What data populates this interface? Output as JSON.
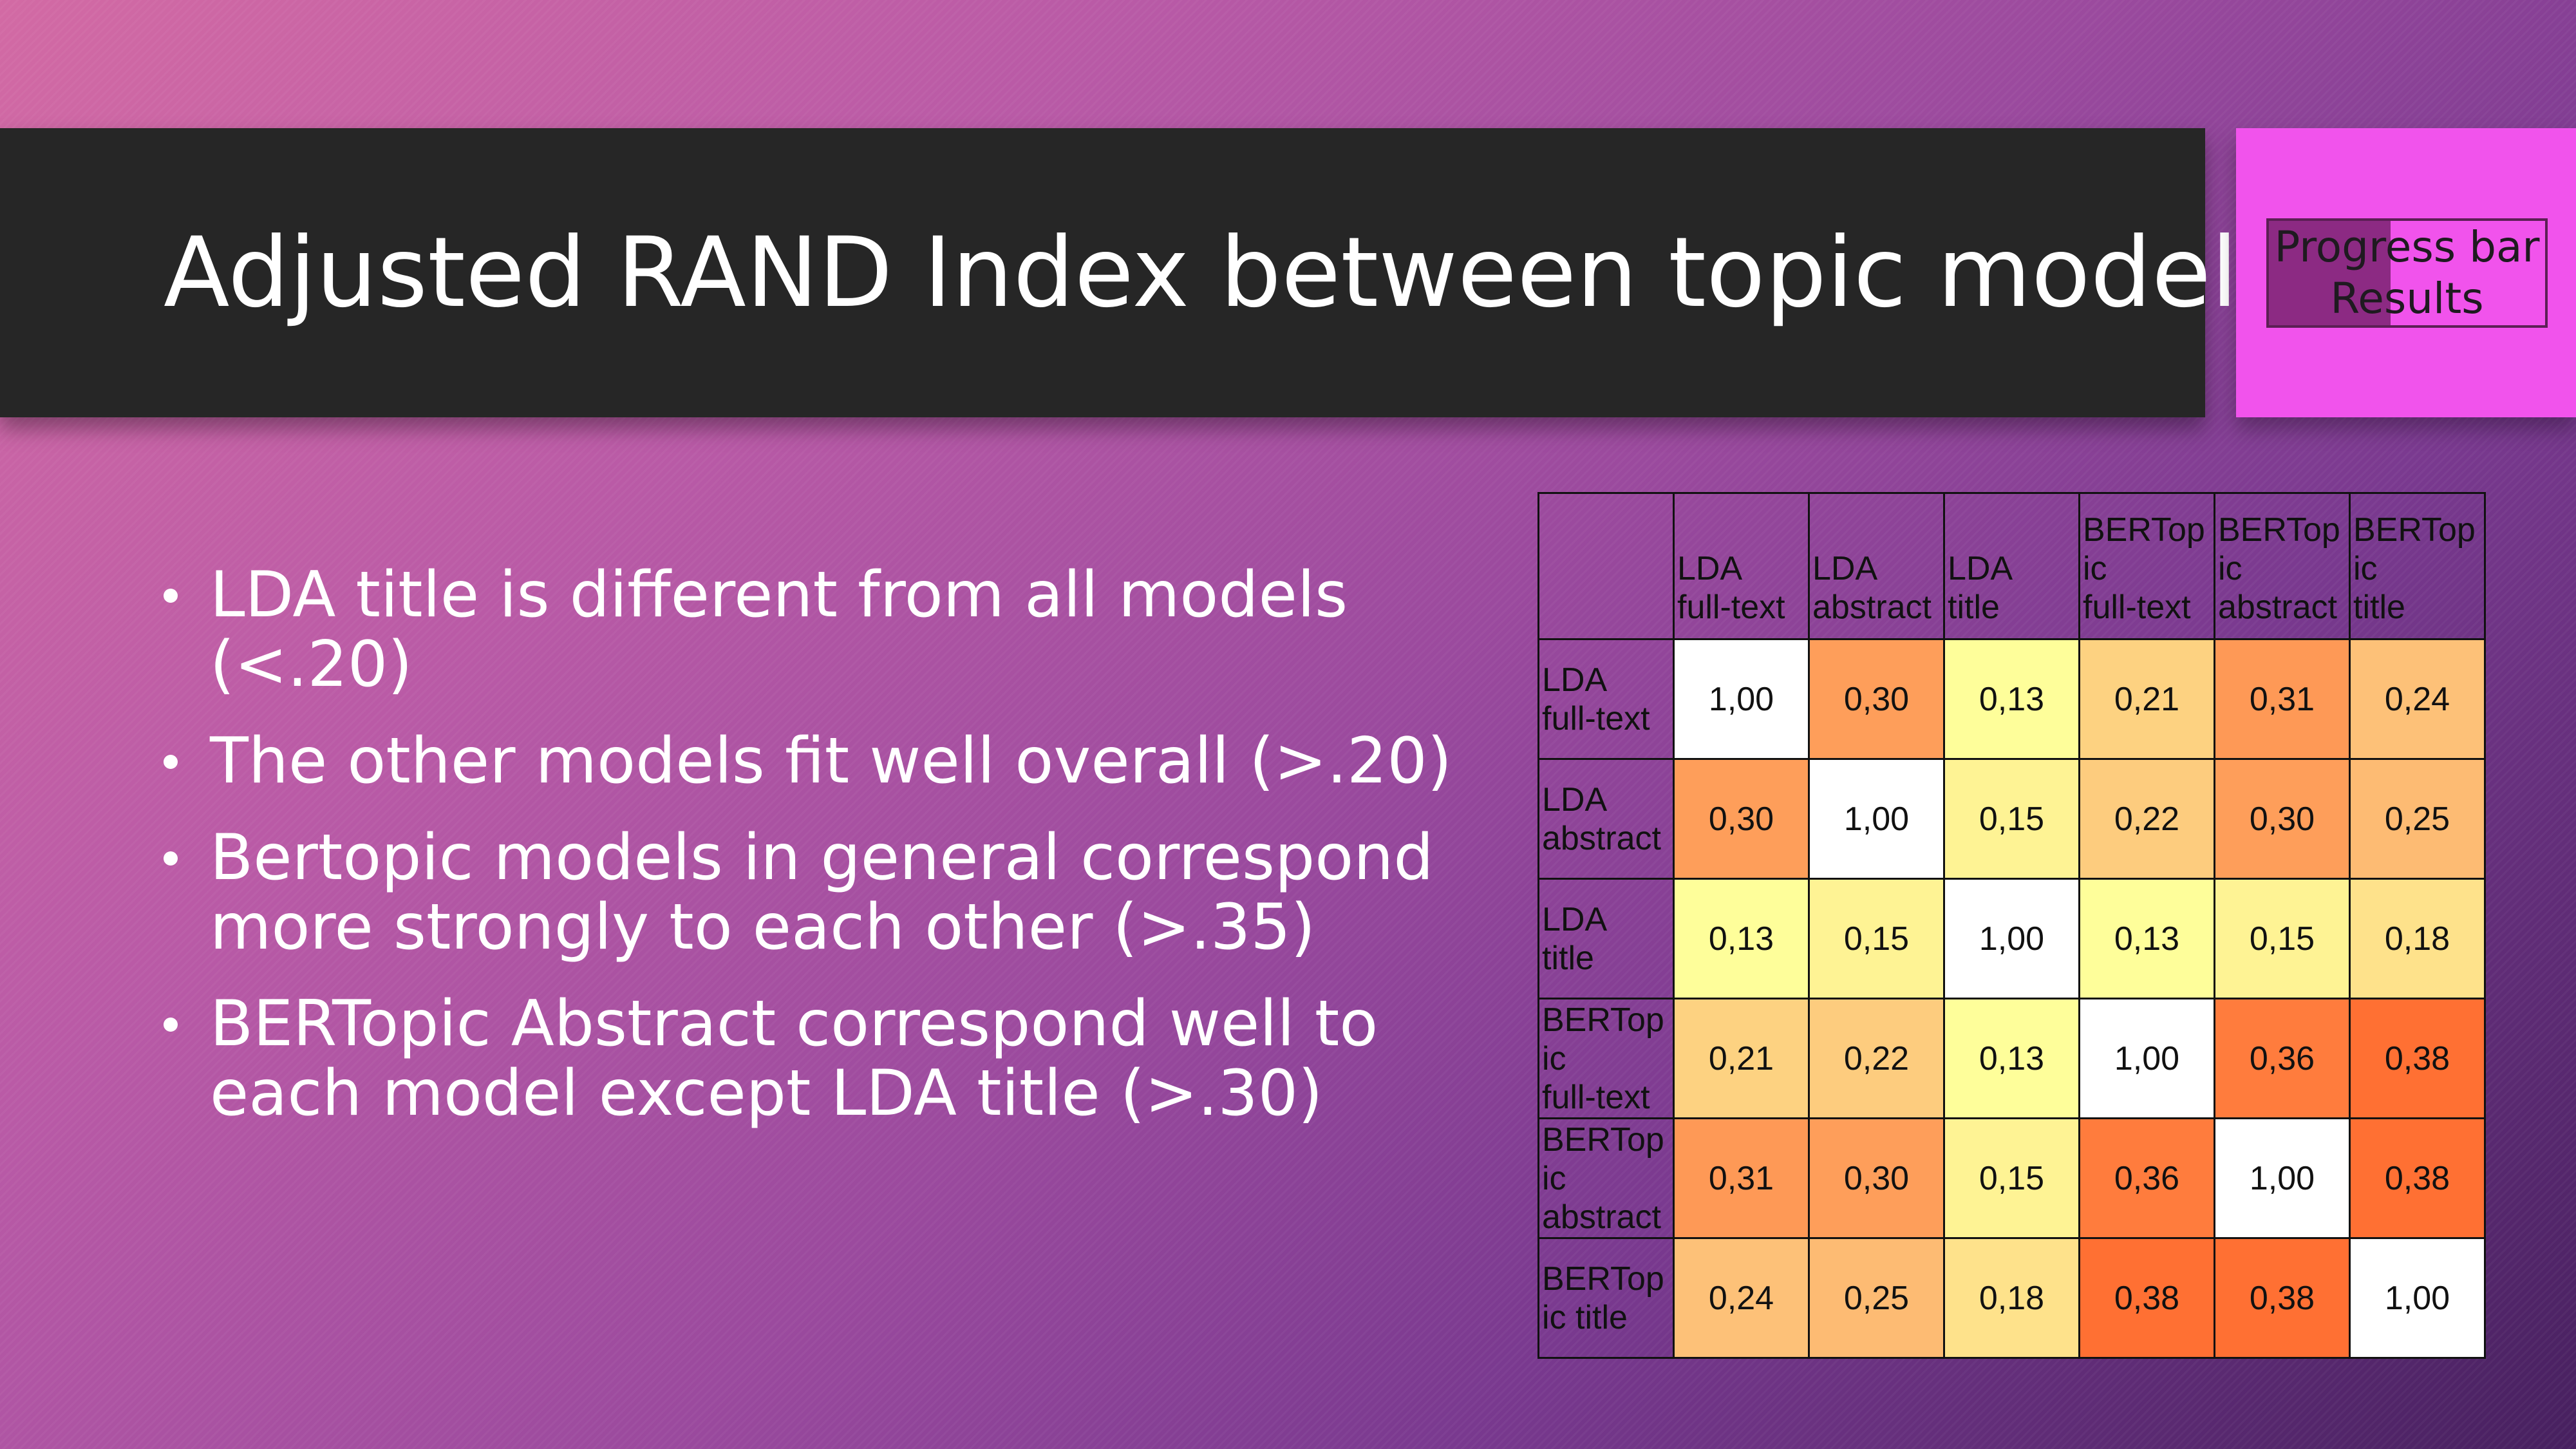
{
  "slide": {
    "title": "Adjusted RAND Index between topic models",
    "progress": {
      "line1": "Progress bar",
      "line2": "Results",
      "fill_fraction": 0.44,
      "fill_color": "#8c2a83",
      "box_color": "#f153ec"
    },
    "bullets": [
      "LDA title is different from all models (<.20)",
      "The other models fit well overall (>.20)",
      "Bertopic models in general correspond more strongly to each other (>.35)",
      "BERTopic Abstract correspond well to each model except LDA title (>.30)"
    ]
  },
  "chart_data": {
    "type": "heatmap",
    "column_labels": [
      [
        "LDA",
        "full-text"
      ],
      [
        "LDA",
        "abstract"
      ],
      [
        "LDA",
        "title"
      ],
      [
        "BERTop",
        "ic",
        "full-text"
      ],
      [
        "BERTop",
        "ic",
        "abstract"
      ],
      [
        "BERTop",
        "ic",
        "title"
      ]
    ],
    "row_labels": [
      [
        "LDA",
        "full-text"
      ],
      [
        "LDA",
        "abstract"
      ],
      [
        "LDA",
        "title"
      ],
      [
        "BERTop",
        "ic",
        "full-text"
      ],
      [
        "BERTop",
        "ic",
        "abstract"
      ],
      [
        "BERTop",
        "ic title"
      ]
    ],
    "cells": [
      [
        "1,00",
        "0,30",
        "0,13",
        "0,21",
        "0,31",
        "0,24"
      ],
      [
        "0,30",
        "1,00",
        "0,15",
        "0,22",
        "0,30",
        "0,25"
      ],
      [
        "0,13",
        "0,15",
        "1,00",
        "0,13",
        "0,15",
        "0,18"
      ],
      [
        "0,21",
        "0,22",
        "0,13",
        "1,00",
        "0,36",
        "0,38"
      ],
      [
        "0,31",
        "0,30",
        "0,15",
        "0,36",
        "1,00",
        "0,38"
      ],
      [
        "0,24",
        "0,25",
        "0,18",
        "0,38",
        "0,38",
        "1,00"
      ]
    ],
    "values": [
      [
        1.0,
        0.3,
        0.13,
        0.21,
        0.31,
        0.24
      ],
      [
        0.3,
        1.0,
        0.15,
        0.22,
        0.3,
        0.25
      ],
      [
        0.13,
        0.15,
        1.0,
        0.13,
        0.15,
        0.18
      ],
      [
        0.21,
        0.22,
        0.13,
        1.0,
        0.36,
        0.38
      ],
      [
        0.31,
        0.3,
        0.15,
        0.36,
        1.0,
        0.38
      ],
      [
        0.24,
        0.25,
        0.18,
        0.38,
        0.38,
        1.0
      ]
    ],
    "colors": {
      "diagonal": "#ffffff",
      "low": "#fefe9a",
      "mid": "#fdc178",
      "high": "#ff7033"
    }
  }
}
